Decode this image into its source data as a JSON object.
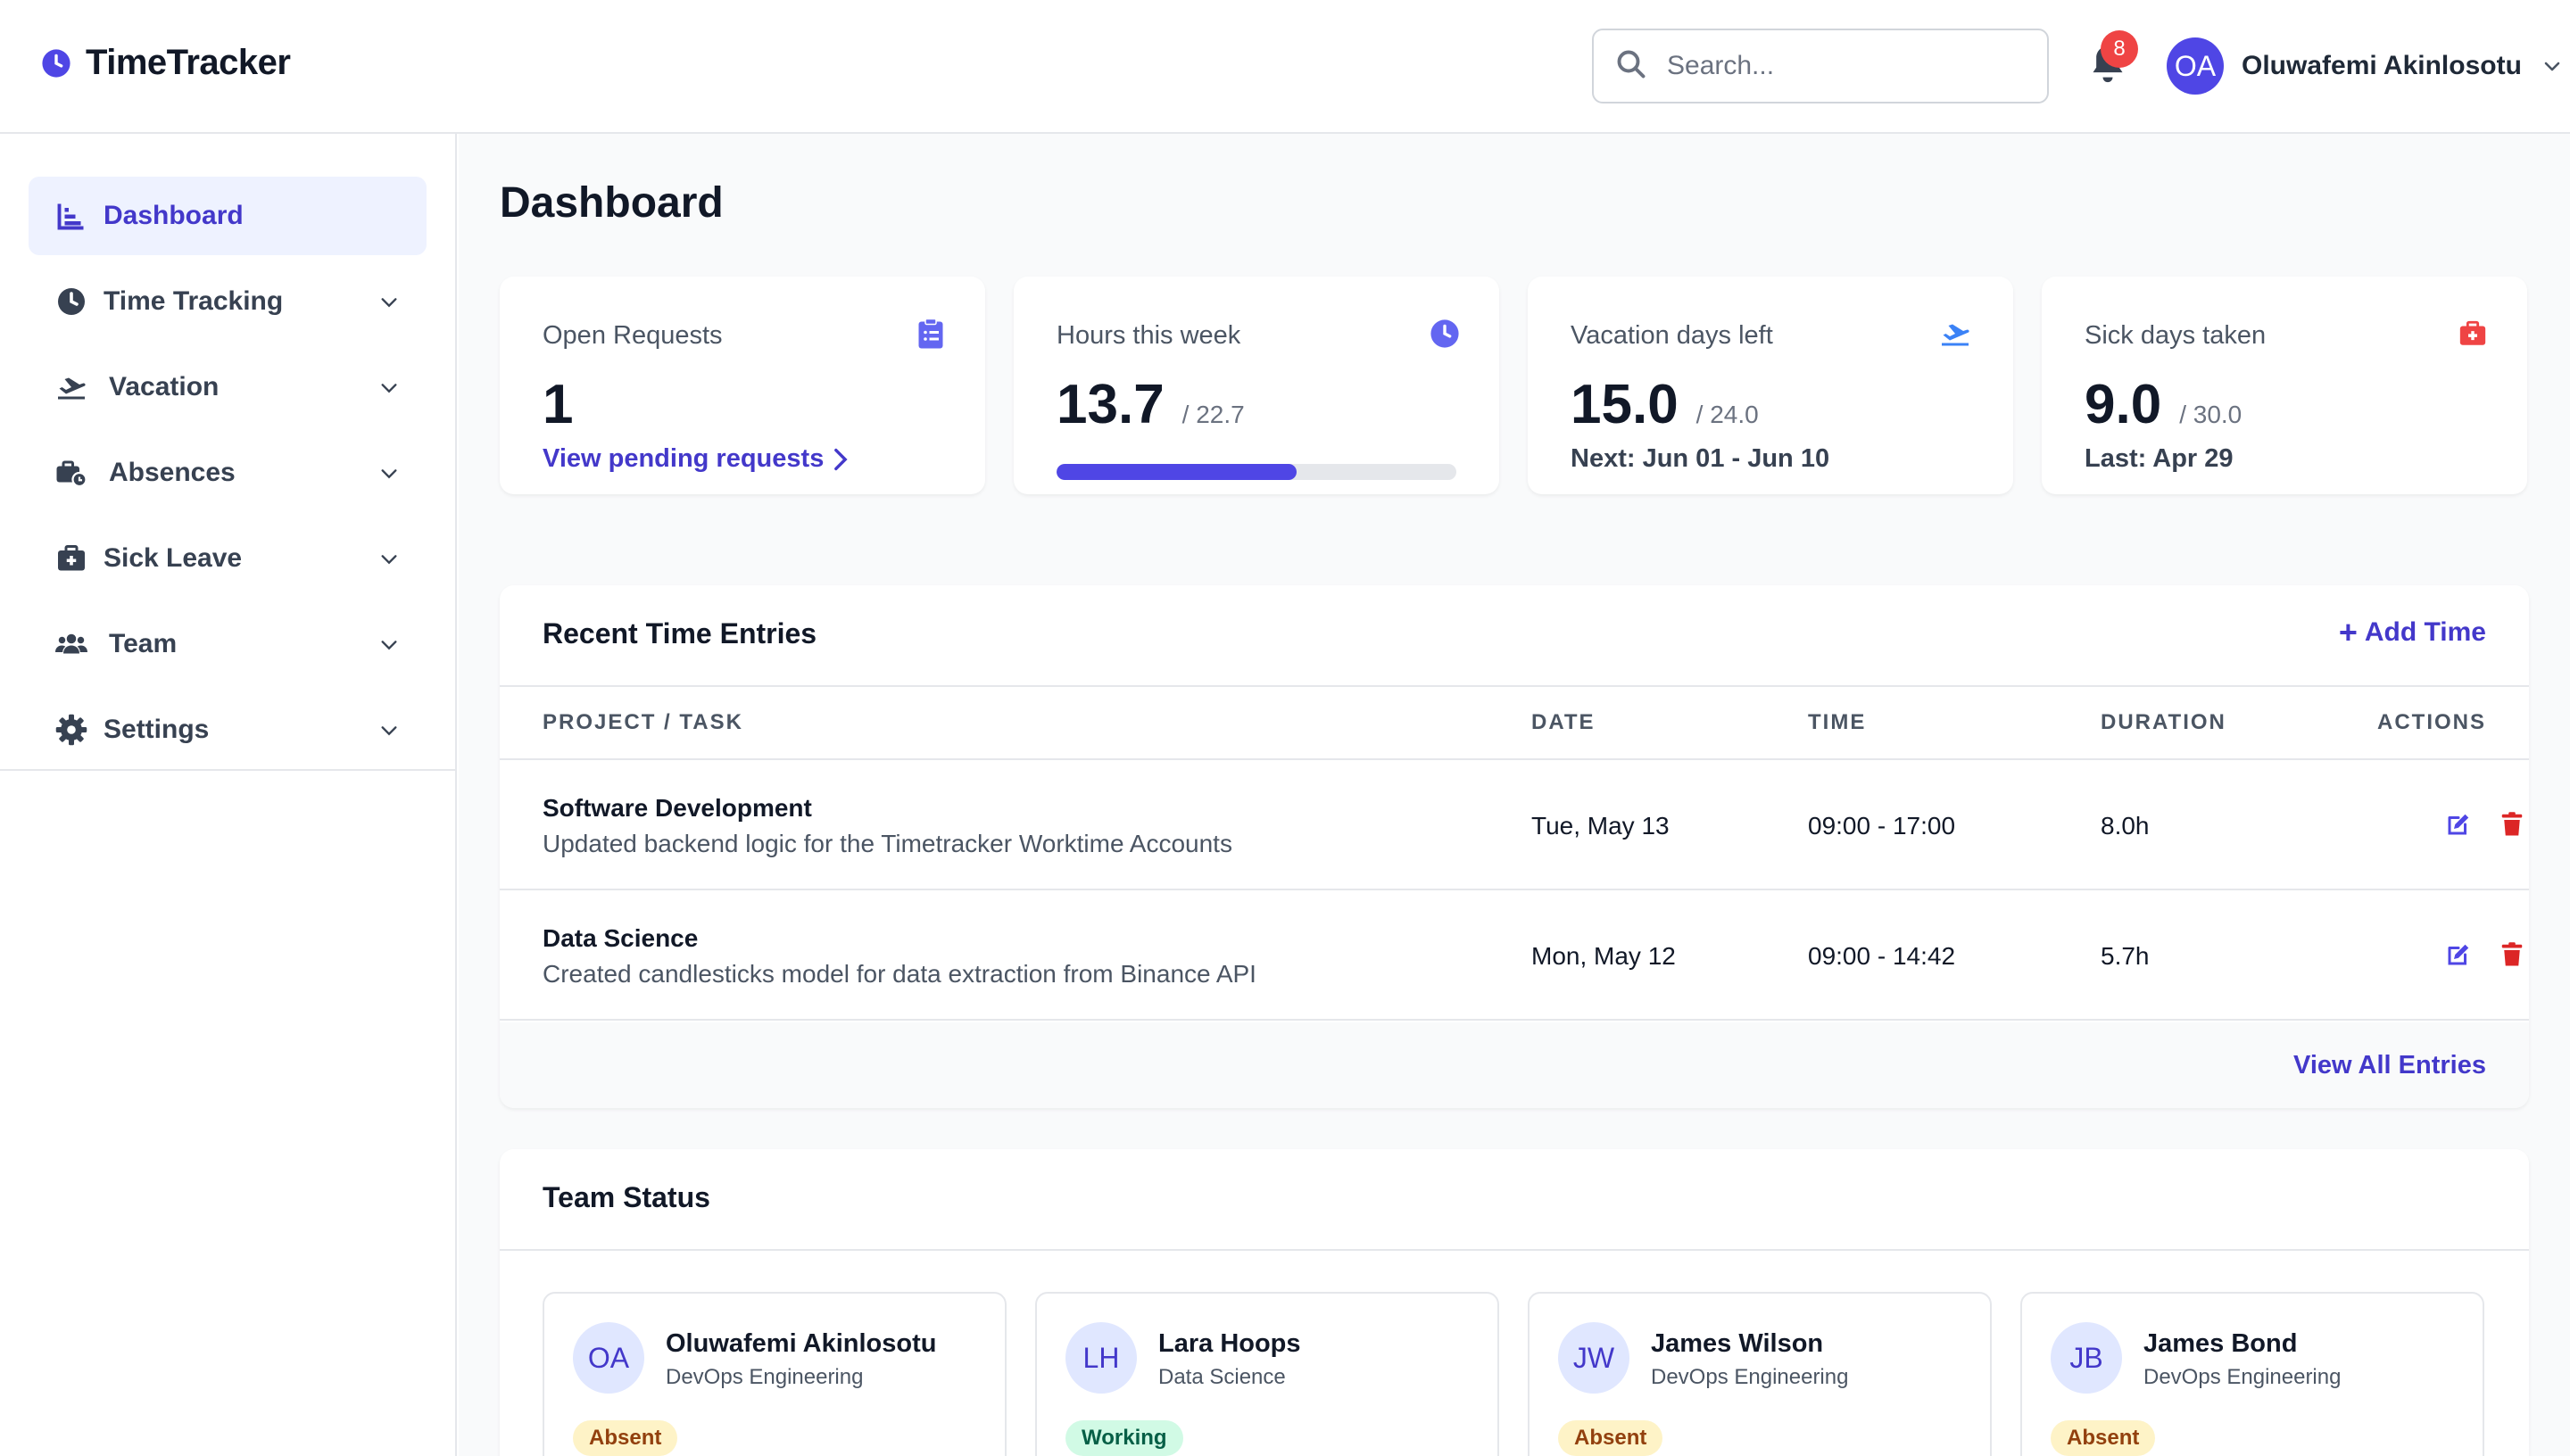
{
  "app": {
    "name": "TimeTracker"
  },
  "header": {
    "search_placeholder": "Search...",
    "notifications_count": "8",
    "user_initials": "OA",
    "user_name": "Oluwafemi Akinlosotu"
  },
  "sidebar": {
    "items": [
      {
        "label": "Dashboard",
        "icon": "chart-bar-icon",
        "active": true
      },
      {
        "label": "Time Tracking",
        "icon": "clock-icon"
      },
      {
        "label": "Vacation",
        "icon": "plane-icon"
      },
      {
        "label": "Absences",
        "icon": "briefcase-clock-icon"
      },
      {
        "label": "Sick Leave",
        "icon": "medical-kit-icon"
      },
      {
        "label": "Team",
        "icon": "users-icon"
      },
      {
        "label": "Settings",
        "icon": "gear-icon"
      }
    ]
  },
  "page": {
    "title": "Dashboard"
  },
  "stats": [
    {
      "label": "Open Requests",
      "value": "1",
      "link": "View pending requests",
      "icon": "clipboard-list-icon",
      "icon_color": "#6366f1"
    },
    {
      "label": "Hours this week",
      "value": "13.7",
      "sub": "/ 22.7",
      "progress": 0.6,
      "icon": "clock-icon",
      "icon_color": "#6366f1"
    },
    {
      "label": "Vacation days left",
      "value": "15.0",
      "sub": "/ 24.0",
      "foot": "Next: Jun 01 - Jun 10",
      "icon": "plane-icon",
      "icon_color": "#3b82f6"
    },
    {
      "label": "Sick days taken",
      "value": "9.0",
      "sub": "/ 30.0",
      "foot": "Last: Apr 29",
      "icon": "medical-kit-icon",
      "icon_color": "#ef4444"
    }
  ],
  "entries": {
    "title": "Recent Time Entries",
    "add_label": "Add Time",
    "columns": [
      "PROJECT / TASK",
      "DATE",
      "TIME",
      "DURATION",
      "ACTIONS"
    ],
    "rows": [
      {
        "project": "Software Development",
        "desc": "Updated backend logic for the Timetracker Worktime Accounts",
        "date": "Tue, May 13",
        "time": "09:00 - 17:00",
        "duration": "8.0h"
      },
      {
        "project": "Data Science",
        "desc": "Created candlesticks model for data extraction from Binance API",
        "date": "Mon, May 12",
        "time": "09:00 - 14:42",
        "duration": "5.7h"
      }
    ],
    "view_all": "View All Entries"
  },
  "team": {
    "title": "Team Status",
    "members": [
      {
        "initials": "OA",
        "name": "Oluwafemi Akinlosotu",
        "dept": "DevOps Engineering",
        "status": "Absent"
      },
      {
        "initials": "LH",
        "name": "Lara Hoops",
        "dept": "Data Science",
        "status": "Working"
      },
      {
        "initials": "JW",
        "name": "James Wilson",
        "dept": "DevOps Engineering",
        "status": "Absent"
      },
      {
        "initials": "JB",
        "name": "James Bond",
        "dept": "DevOps Engineering",
        "status": "Absent"
      }
    ]
  },
  "colors": {
    "accent": "#4f46e5",
    "accent_text": "#4338ca",
    "danger": "#ef4444"
  }
}
